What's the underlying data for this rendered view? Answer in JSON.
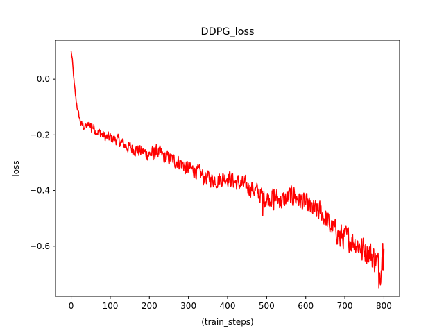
{
  "chart_data": {
    "type": "line",
    "title": "DDPG_loss",
    "xlabel": "(train_steps)",
    "ylabel": "loss",
    "xlim": [
      -40,
      840
    ],
    "ylim": [
      -0.78,
      0.14
    ],
    "xticks": [
      0,
      100,
      200,
      300,
      400,
      500,
      600,
      700,
      800
    ],
    "yticks": [
      -0.6,
      -0.4,
      -0.2,
      0.0
    ],
    "xtick_labels": [
      "0",
      "100",
      "200",
      "300",
      "400",
      "500",
      "600",
      "700",
      "800"
    ],
    "ytick_labels": [
      "−0.6",
      "−0.4",
      "−0.2",
      "0.0"
    ],
    "grid": false,
    "legend": "none",
    "series": [
      {
        "color": "#ff0000",
        "anchor_x": [
          0,
          3,
          8,
          12,
          18,
          25,
          32,
          40,
          50,
          60,
          70,
          80,
          90,
          100,
          120,
          140,
          160,
          180,
          200,
          220,
          240,
          260,
          280,
          300,
          320,
          340,
          360,
          380,
          400,
          420,
          440,
          460,
          480,
          500,
          520,
          540,
          560,
          580,
          600,
          620,
          640,
          660,
          680,
          700,
          720,
          740,
          760,
          780,
          790,
          800
        ],
        "anchor_y": [
          0.1,
          0.07,
          -0.02,
          -0.07,
          -0.12,
          -0.16,
          -0.17,
          -0.17,
          -0.16,
          -0.18,
          -0.19,
          -0.2,
          -0.21,
          -0.21,
          -0.22,
          -0.24,
          -0.25,
          -0.26,
          -0.27,
          -0.26,
          -0.28,
          -0.29,
          -0.3,
          -0.32,
          -0.33,
          -0.35,
          -0.36,
          -0.36,
          -0.35,
          -0.37,
          -0.38,
          -0.39,
          -0.41,
          -0.43,
          -0.42,
          -0.44,
          -0.42,
          -0.43,
          -0.45,
          -0.47,
          -0.48,
          -0.52,
          -0.55,
          -0.57,
          -0.58,
          -0.6,
          -0.62,
          -0.65,
          -0.69,
          -0.61
        ],
        "noise_amplitude": [
          0.004,
          0.006,
          0.012,
          0.015,
          0.015,
          0.017,
          0.02,
          0.02,
          0.022,
          0.025,
          0.025,
          0.025,
          0.027,
          0.027,
          0.027,
          0.03,
          0.032,
          0.032,
          0.035,
          0.035,
          0.035,
          0.035,
          0.037,
          0.037,
          0.037,
          0.037,
          0.037,
          0.04,
          0.042,
          0.042,
          0.042,
          0.045,
          0.045,
          0.047,
          0.047,
          0.05,
          0.05,
          0.05,
          0.05,
          0.052,
          0.055,
          0.055,
          0.055,
          0.06,
          0.06,
          0.06,
          0.065,
          0.07,
          0.07,
          0.07
        ],
        "spikes": [
          [
            52,
            -0.19
          ],
          [
            210,
            -0.29
          ],
          [
            238,
            -0.3
          ],
          [
            292,
            -0.34
          ],
          [
            338,
            -0.38
          ],
          [
            372,
            -0.39
          ],
          [
            490,
            -0.49
          ],
          [
            518,
            -0.47
          ],
          [
            570,
            -0.39
          ],
          [
            662,
            -0.55
          ],
          [
            688,
            -0.6
          ],
          [
            744,
            -0.65
          ],
          [
            787,
            -0.75
          ],
          [
            797,
            -0.59
          ]
        ]
      }
    ]
  }
}
